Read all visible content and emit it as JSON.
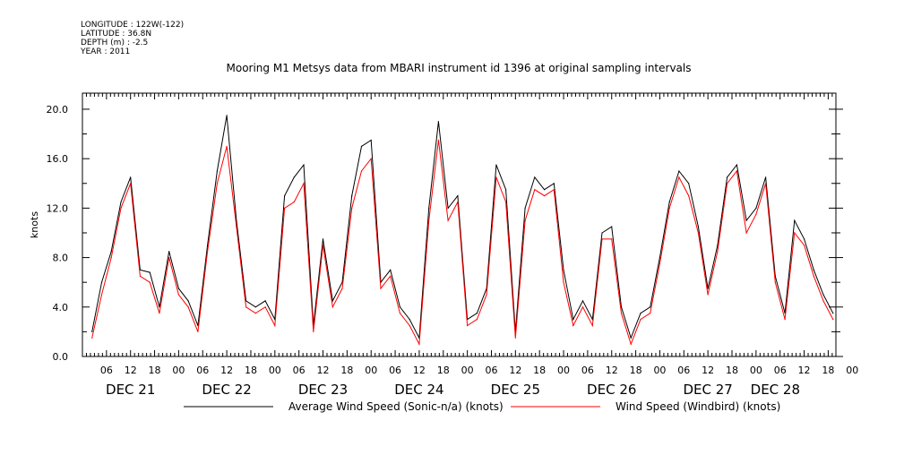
{
  "header": {
    "meta_lines": [
      "LONGITUDE : 122W(-122)",
      "LATITUDE : 36.8N",
      "DEPTH (m) : -2.5",
      "YEAR : 2011"
    ]
  },
  "chart_data": {
    "type": "line",
    "title": "Mooring M1 Metsys data from MBARI instrument id 1396 at original sampling intervals",
    "ylabel": "knots",
    "xlabel": "",
    "xlim": [
      0,
      7.83
    ],
    "ylim": [
      0,
      21.3
    ],
    "x_unit_note": "days from DEC 21 00:00 2011",
    "y_ticks": [
      "0.0",
      "4.0",
      "8.0",
      "12.0",
      "16.0",
      "20.0"
    ],
    "y_tick_values": [
      0,
      4,
      8,
      12,
      16,
      20
    ],
    "x_hour_ticks": [
      "06",
      "12",
      "18",
      "00",
      "06",
      "12",
      "18",
      "00",
      "06",
      "12",
      "18",
      "00",
      "06",
      "12",
      "18",
      "00",
      "06",
      "12",
      "18",
      "00",
      "06",
      "12",
      "18",
      "00",
      "06",
      "12",
      "18",
      "00",
      "06",
      "12",
      "18",
      "00"
    ],
    "x_day_labels": [
      {
        "label": "DEC 21",
        "day": 0
      },
      {
        "label": "DEC 22",
        "day": 1
      },
      {
        "label": "DEC 23",
        "day": 2
      },
      {
        "label": "DEC 24",
        "day": 3
      },
      {
        "label": "DEC 25",
        "day": 4
      },
      {
        "label": "DEC 26",
        "day": 5
      },
      {
        "label": "DEC 27",
        "day": 6
      },
      {
        "label": "DEC 28",
        "day": 7
      }
    ],
    "series": [
      {
        "name": "Average Wind Speed (Sonic-n/a) (knots)",
        "color": "#000000",
        "x": [
          0.1,
          0.2,
          0.3,
          0.4,
          0.5,
          0.6,
          0.7,
          0.8,
          0.9,
          1.0,
          1.1,
          1.2,
          1.3,
          1.4,
          1.5,
          1.6,
          1.7,
          1.8,
          1.9,
          2.0,
          2.1,
          2.2,
          2.3,
          2.4,
          2.5,
          2.6,
          2.7,
          2.8,
          2.9,
          3.0,
          3.1,
          3.2,
          3.3,
          3.4,
          3.5,
          3.6,
          3.7,
          3.8,
          3.9,
          4.0,
          4.1,
          4.2,
          4.3,
          4.4,
          4.5,
          4.6,
          4.7,
          4.8,
          4.9,
          5.0,
          5.1,
          5.2,
          5.3,
          5.4,
          5.5,
          5.6,
          5.7,
          5.8,
          5.9,
          6.0,
          6.1,
          6.2,
          6.3,
          6.4,
          6.5,
          6.6,
          6.7,
          6.8,
          6.9,
          7.0,
          7.1,
          7.2,
          7.3,
          7.4,
          7.5,
          7.6,
          7.7,
          7.8
        ],
        "values": [
          2.0,
          6.0,
          8.5,
          12.5,
          14.5,
          7.0,
          6.8,
          4.0,
          8.5,
          5.5,
          4.5,
          2.5,
          9.0,
          15.0,
          19.5,
          11.0,
          4.5,
          4.0,
          4.5,
          3.0,
          13.0,
          14.5,
          15.5,
          2.5,
          9.5,
          4.5,
          6.0,
          13.0,
          17.0,
          17.5,
          6.0,
          7.0,
          4.0,
          3.0,
          1.5,
          12.0,
          19.0,
          12.0,
          13.0,
          3.0,
          3.5,
          5.5,
          15.5,
          13.5,
          2.0,
          12.0,
          14.5,
          13.5,
          14.0,
          7.0,
          3.0,
          4.5,
          3.0,
          10.0,
          10.5,
          4.0,
          1.5,
          3.5,
          4.0,
          8.0,
          12.5,
          15.0,
          14.0,
          10.5,
          5.5,
          9.0,
          14.5,
          15.5,
          11.0,
          12.0,
          14.5,
          6.5,
          3.5,
          11.0,
          9.5,
          7.0,
          5.0,
          3.5
        ]
      },
      {
        "name": "Wind Speed (Windbird) (knots)",
        "color": "#ff0000",
        "x": [
          0.1,
          0.2,
          0.3,
          0.4,
          0.5,
          0.6,
          0.7,
          0.8,
          0.9,
          1.0,
          1.1,
          1.2,
          1.3,
          1.4,
          1.5,
          1.6,
          1.7,
          1.8,
          1.9,
          2.0,
          2.1,
          2.2,
          2.3,
          2.4,
          2.5,
          2.6,
          2.7,
          2.8,
          2.9,
          3.0,
          3.1,
          3.2,
          3.3,
          3.4,
          3.5,
          3.6,
          3.7,
          3.8,
          3.9,
          4.0,
          4.1,
          4.2,
          4.3,
          4.4,
          4.5,
          4.6,
          4.7,
          4.8,
          4.9,
          5.0,
          5.1,
          5.2,
          5.3,
          5.4,
          5.5,
          5.6,
          5.7,
          5.8,
          5.9,
          6.0,
          6.1,
          6.2,
          6.3,
          6.4,
          6.5,
          6.6,
          6.7,
          6.8,
          6.9,
          7.0,
          7.1,
          7.2,
          7.3,
          7.4,
          7.5,
          7.6,
          7.7,
          7.8
        ],
        "values": [
          1.5,
          5.0,
          8.0,
          12.0,
          14.0,
          6.5,
          6.0,
          3.5,
          8.0,
          5.0,
          4.0,
          2.0,
          8.5,
          14.0,
          17.0,
          10.5,
          4.0,
          3.5,
          4.0,
          2.5,
          12.0,
          12.5,
          14.0,
          2.0,
          9.0,
          4.0,
          5.5,
          12.0,
          15.0,
          16.0,
          5.5,
          6.5,
          3.5,
          2.5,
          1.0,
          11.0,
          17.5,
          11.0,
          12.5,
          2.5,
          3.0,
          5.0,
          14.5,
          12.5,
          1.5,
          11.0,
          13.5,
          13.0,
          13.5,
          6.0,
          2.5,
          4.0,
          2.5,
          9.5,
          9.5,
          3.5,
          1.0,
          3.0,
          3.5,
          7.5,
          12.0,
          14.5,
          13.0,
          10.0,
          5.0,
          8.5,
          14.0,
          15.0,
          10.0,
          11.5,
          14.0,
          6.0,
          3.0,
          10.0,
          9.0,
          6.5,
          4.5,
          3.0
        ]
      }
    ],
    "legend_position": "bottom",
    "grid": false
  }
}
